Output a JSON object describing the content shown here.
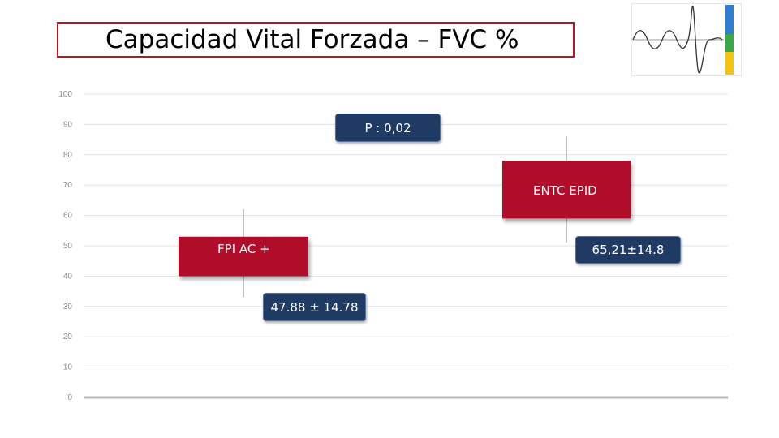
{
  "title": "Capacidad Vital Forzada – FVC %",
  "logo": {
    "icon": "waveform-logo-icon",
    "colors": [
      "#2e7dd1",
      "#3aa845",
      "#f2c40f"
    ]
  },
  "colors": {
    "box": "#b0082a",
    "label_bg": "#1f3b63",
    "title_border": "#c0111f"
  },
  "chart_data": {
    "type": "box",
    "title": "Capacidad Vital Forzada – FVC %",
    "ylim": [
      0,
      100
    ],
    "yticks": [
      "0",
      "10",
      "20",
      "30",
      "40",
      "50",
      "60",
      "70",
      "80",
      "90",
      "100"
    ],
    "grid": true,
    "series": [
      {
        "label": "FPI   AC +",
        "mean": 47.88,
        "sd": 14.78,
        "box_low": 40,
        "box_high": 53,
        "whisker_low": 33,
        "whisker_high": 62,
        "value_label": "47.88 ± 14.78"
      },
      {
        "label": "ENTC  EPID",
        "mean": 65.21,
        "sd": 14.8,
        "box_low": 59,
        "box_high": 78,
        "whisker_low": 51,
        "whisker_high": 86,
        "value_label": "65,21±14.8"
      }
    ],
    "annotation": "P : 0,02"
  }
}
